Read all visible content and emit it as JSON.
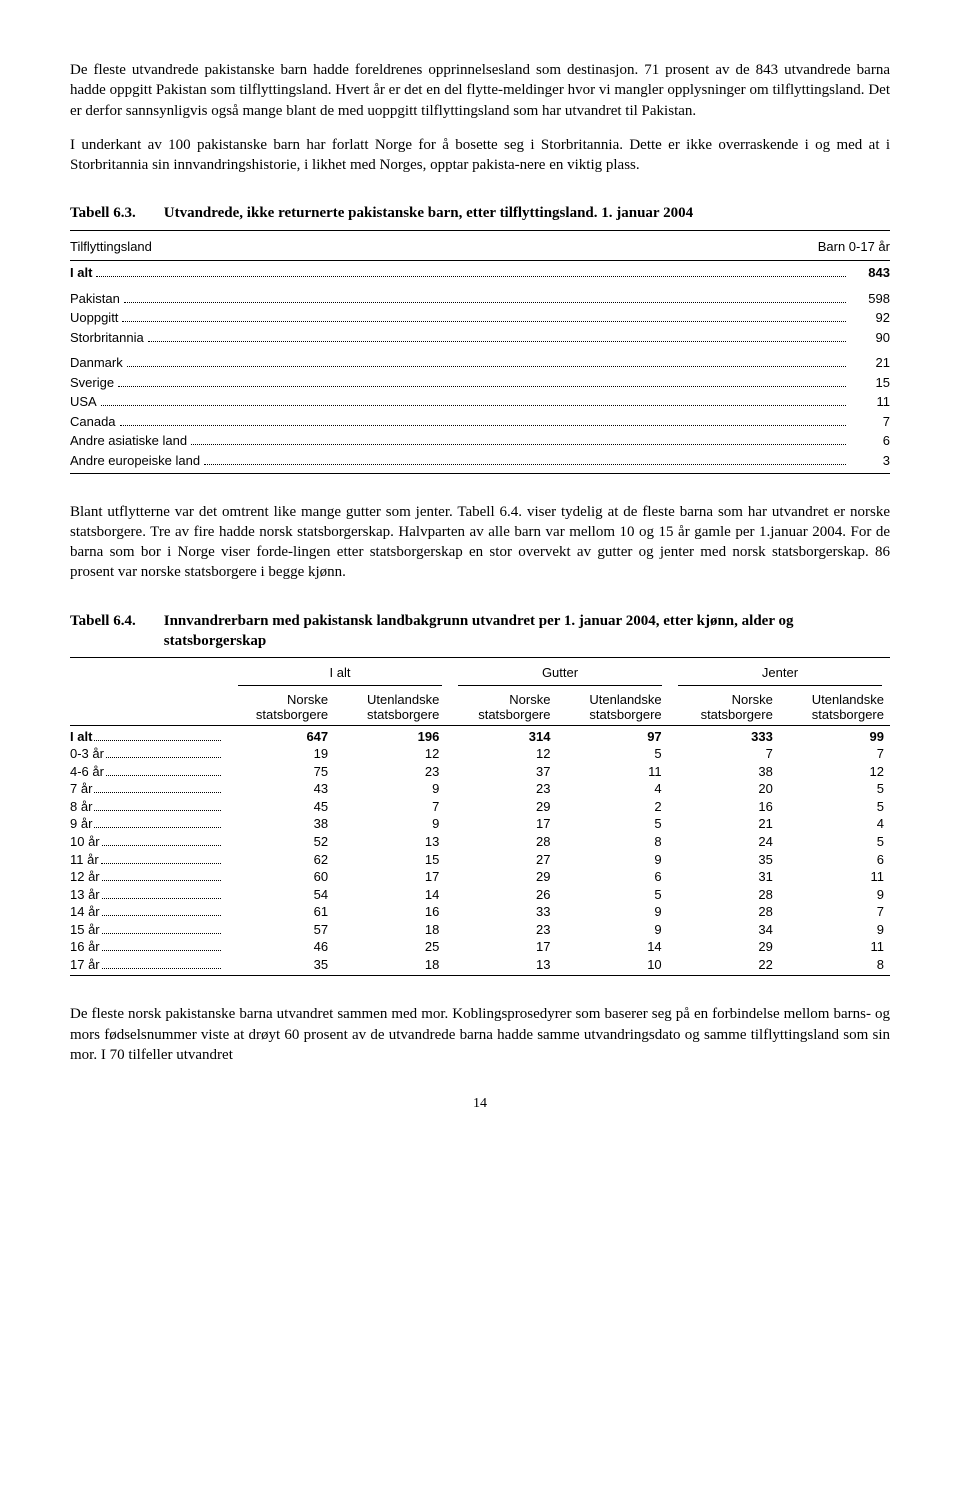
{
  "paragraphs": {
    "p1": "De fleste utvandrede pakistanske barn hadde foreldrenes opprinnelsesland som destinasjon. 71 prosent av de 843 utvandrede barna hadde oppgitt Pakistan som tilflyttingsland. Hvert år er det en del flytte-meldinger hvor vi mangler opplysninger om tilflyttingsland. Det er derfor sannsynligvis også mange blant de med uoppgitt tilflyttingsland som har utvandret til Pakistan.",
    "p2": "I underkant av 100 pakistanske barn har forlatt Norge for å bosette seg i Storbritannia. Dette er ikke overraskende i og med at i Storbritannia sin innvandringshistorie, i likhet med Norges, opptar pakista-nere en viktig plass.",
    "p3": "Blant utflytterne var det omtrent like mange gutter som jenter. Tabell 6.4. viser tydelig at de fleste barna som har utvandret er norske statsborgere. Tre av fire hadde norsk statsborgerskap. Halvparten av alle barn var mellom 10 og 15 år gamle per 1.januar 2004. For de barna som bor i Norge viser forde-lingen etter statsborgerskap en stor overvekt av gutter og jenter med norsk statsborgerskap. 86 prosent var norske statsborgere i begge kjønn.",
    "p4": "De fleste norsk pakistanske barna utvandret sammen med mor. Koblingsprosedyrer som baserer seg på en forbindelse mellom barns- og mors fødselsnummer viste at drøyt 60 prosent av de utvandrede barna hadde samme utvandringsdato og samme tilflyttingsland som sin mor. I 70 tilfeller utvandret"
  },
  "table63": {
    "number": "Tabell 6.3.",
    "title": "Utvandrede, ikke returnerte pakistanske barn, etter tilflyttingsland. 1. januar 2004",
    "header_left": "Tilflyttingsland",
    "header_right": "Barn 0-17 år",
    "groups": [
      [
        {
          "label": "I alt",
          "value": "843",
          "bold": true
        }
      ],
      [
        {
          "label": "Pakistan",
          "value": "598"
        },
        {
          "label": "Uoppgitt",
          "value": "92"
        },
        {
          "label": "Storbritannia",
          "value": "90"
        }
      ],
      [
        {
          "label": "Danmark",
          "value": "21"
        },
        {
          "label": "Sverige",
          "value": "15"
        },
        {
          "label": "USA",
          "value": "11"
        },
        {
          "label": "Canada",
          "value": "7"
        },
        {
          "label": "Andre asiatiske land",
          "value": "6"
        },
        {
          "label": "Andre europeiske land",
          "value": "3"
        }
      ]
    ]
  },
  "table64": {
    "number": "Tabell 6.4.",
    "title": "Innvandrerbarn med pakistansk landbakgrunn utvandret per 1. januar 2004, etter kjønn, alder og statsborgerskap",
    "groups": [
      "I alt",
      "Gutter",
      "Jenter"
    ],
    "sub_n": "Norske statsborgere",
    "sub_u": "Utenlandske statsborgere",
    "rows": [
      {
        "label": "I alt",
        "bold": true,
        "vals": [
          "647",
          "196",
          "314",
          "97",
          "333",
          "99"
        ]
      },
      {
        "label": "0-3 år",
        "vals": [
          "19",
          "12",
          "12",
          "5",
          "7",
          "7"
        ]
      },
      {
        "label": "4-6 år",
        "vals": [
          "75",
          "23",
          "37",
          "11",
          "38",
          "12"
        ]
      },
      {
        "label": "7 år",
        "vals": [
          "43",
          "9",
          "23",
          "4",
          "20",
          "5"
        ]
      },
      {
        "label": "8 år",
        "vals": [
          "45",
          "7",
          "29",
          "2",
          "16",
          "5"
        ]
      },
      {
        "label": "9 år",
        "vals": [
          "38",
          "9",
          "17",
          "5",
          "21",
          "4"
        ]
      },
      {
        "label": "10 år",
        "vals": [
          "52",
          "13",
          "28",
          "8",
          "24",
          "5"
        ]
      },
      {
        "label": "11 år",
        "vals": [
          "62",
          "15",
          "27",
          "9",
          "35",
          "6"
        ]
      },
      {
        "label": "12 år",
        "vals": [
          "60",
          "17",
          "29",
          "6",
          "31",
          "11"
        ]
      },
      {
        "label": "13 år",
        "vals": [
          "54",
          "14",
          "26",
          "5",
          "28",
          "9"
        ]
      },
      {
        "label": "14 år",
        "vals": [
          "61",
          "16",
          "33",
          "9",
          "28",
          "7"
        ]
      },
      {
        "label": "15 år",
        "vals": [
          "57",
          "18",
          "23",
          "9",
          "34",
          "9"
        ]
      },
      {
        "label": "16 år",
        "vals": [
          "46",
          "25",
          "17",
          "14",
          "29",
          "11"
        ]
      },
      {
        "label": "17 år",
        "vals": [
          "35",
          "18",
          "13",
          "10",
          "22",
          "8"
        ]
      }
    ]
  },
  "pagenum": "14"
}
